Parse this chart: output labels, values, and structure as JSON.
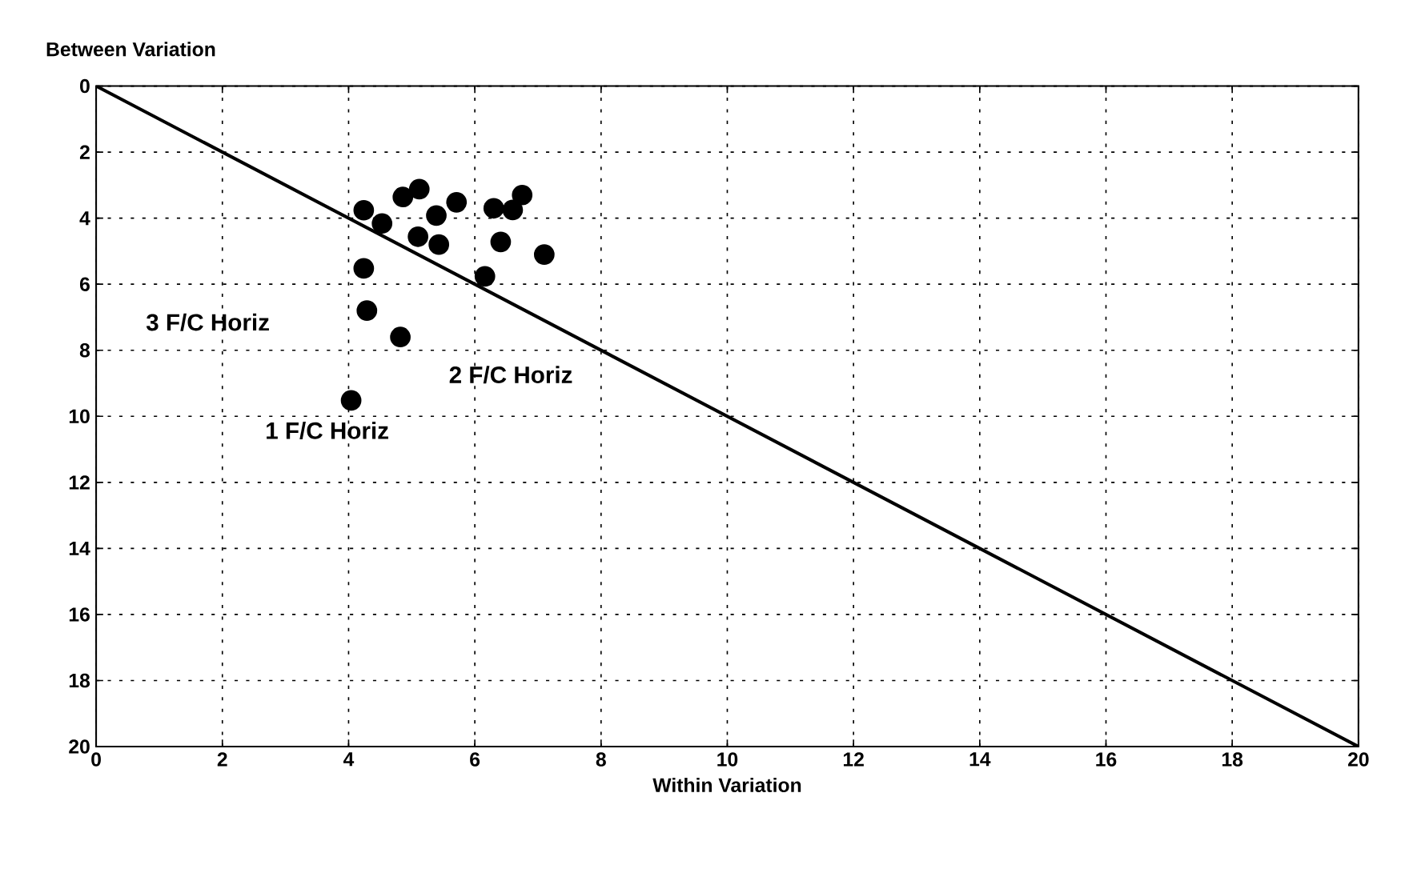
{
  "chart_data": {
    "type": "scatter",
    "xlabel": "Within Variation",
    "ylabel": "Between Variation",
    "xlim": [
      0,
      20
    ],
    "ylim": [
      20,
      0
    ],
    "xticks": [
      0,
      2,
      4,
      6,
      8,
      10,
      12,
      14,
      16,
      18,
      20
    ],
    "yticks": [
      0,
      2,
      4,
      6,
      8,
      10,
      12,
      14,
      16,
      18,
      20
    ],
    "grid": true,
    "series": [
      {
        "color": "#000000",
        "x": [
          4.24,
          4.53,
          4.86,
          5.12,
          5.71,
          5.39,
          5.1,
          5.43,
          6.3,
          6.6,
          6.75,
          6.41,
          7.1,
          6.16,
          4.24,
          4.29,
          4.82,
          4.04
        ],
        "values": [
          3.76,
          4.16,
          3.36,
          3.12,
          3.52,
          3.92,
          4.56,
          4.8,
          3.7,
          3.75,
          3.3,
          4.72,
          5.1,
          5.76,
          5.52,
          6.8,
          7.6,
          9.52
        ]
      },
      {
        "type": "line",
        "color": "#000000",
        "x": [
          0,
          20
        ],
        "values": [
          0,
          20
        ]
      }
    ],
    "annotations": [
      "3 F/C Horiz",
      "2 F/C Horiz",
      "1 F/C Horiz"
    ]
  }
}
